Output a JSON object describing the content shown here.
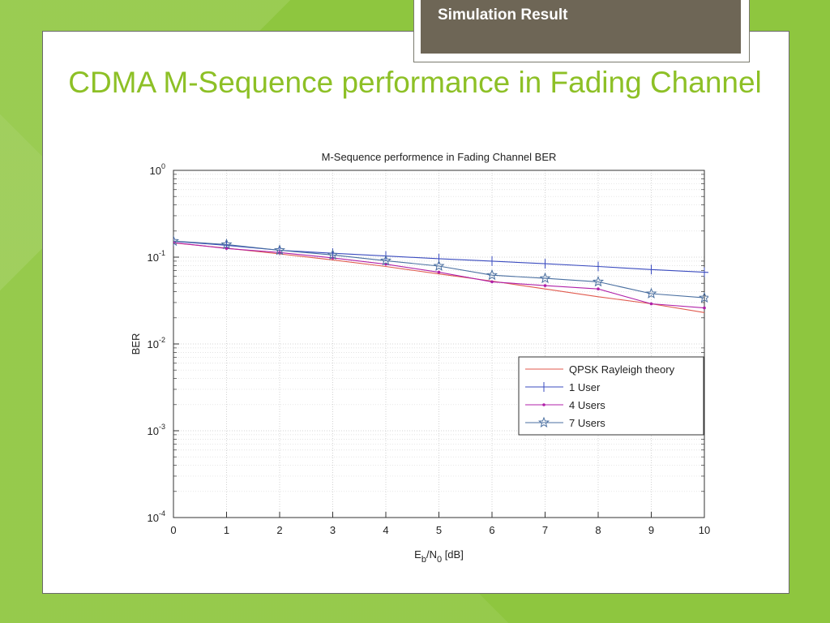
{
  "header": {
    "tab_label": "Simulation Result"
  },
  "slide": {
    "title": "CDMA M-Sequence performance in Fading Channel"
  },
  "chart_data": {
    "type": "line",
    "title": "M-Sequence performence in Fading Channel BER",
    "xlabel": "Eb/N0 [dB]",
    "ylabel": "BER",
    "xlim": [
      0,
      10
    ],
    "ylim": [
      0.0001,
      1
    ],
    "yscale": "log",
    "grid": true,
    "legend_position": "right",
    "x_ticks": [
      0,
      1,
      2,
      3,
      4,
      5,
      6,
      7,
      8,
      9,
      10
    ],
    "y_ticks": [
      {
        "value": 1,
        "base": "10",
        "exp": "0"
      },
      {
        "value": 0.1,
        "base": "10",
        "exp": "-1"
      },
      {
        "value": 0.01,
        "base": "10",
        "exp": "-2"
      },
      {
        "value": 0.001,
        "base": "10",
        "exp": "-3"
      },
      {
        "value": 0.0001,
        "base": "10",
        "exp": "-4"
      }
    ],
    "series": [
      {
        "name": "QPSK Rayleigh theory",
        "color": "#e05a4e",
        "marker": "none",
        "x": [
          0,
          1,
          2,
          3,
          4,
          5,
          6,
          7,
          8,
          9,
          10
        ],
        "values": [
          0.146,
          0.127,
          0.109,
          0.093,
          0.078,
          0.064,
          0.053,
          0.043,
          0.035,
          0.029,
          0.023
        ]
      },
      {
        "name": "1 User",
        "color": "#3a4bbf",
        "marker": "plus",
        "x": [
          0,
          1,
          2,
          3,
          4,
          5,
          6,
          7,
          8,
          9,
          10
        ],
        "values": [
          0.152,
          0.137,
          0.12,
          0.111,
          0.103,
          0.096,
          0.09,
          0.084,
          0.078,
          0.072,
          0.067
        ]
      },
      {
        "name": "4 Users",
        "color": "#b020a8",
        "marker": "dot",
        "x": [
          0,
          1,
          2,
          3,
          4,
          5,
          6,
          7,
          8,
          9,
          10
        ],
        "values": [
          0.147,
          0.126,
          0.113,
          0.098,
          0.083,
          0.067,
          0.052,
          0.047,
          0.043,
          0.029,
          0.026
        ]
      },
      {
        "name": "7 Users",
        "color": "#4a6fa0",
        "marker": "star",
        "x": [
          0,
          1,
          2,
          3,
          4,
          5,
          6,
          7,
          8,
          9,
          10
        ],
        "values": [
          0.153,
          0.14,
          0.12,
          0.106,
          0.091,
          0.079,
          0.062,
          0.057,
          0.052,
          0.038,
          0.034
        ]
      }
    ]
  }
}
